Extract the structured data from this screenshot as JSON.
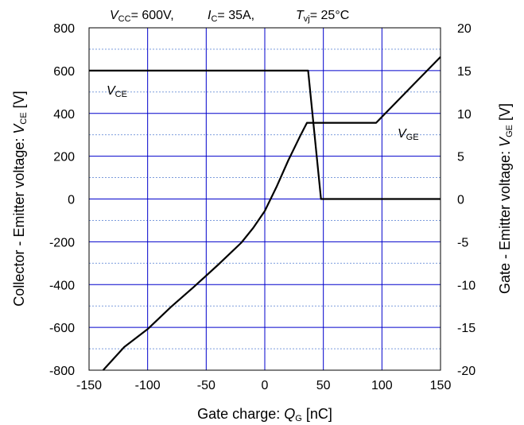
{
  "chart_data": {
    "type": "line",
    "conditions": {
      "vcc": {
        "symbol": "V",
        "sub": "CC",
        "value": "= 600V,"
      },
      "ic": {
        "symbol": "I",
        "sub": "C",
        "value": "= 35A,"
      },
      "tvj": {
        "symbol": "T",
        "sub": "vj",
        "value": "= 25°C"
      }
    },
    "xlabel": {
      "text": "Gate charge: ",
      "symbol": "Q",
      "sub": "G",
      "unit": " [nC]"
    },
    "ylabel_left": {
      "text": "Collector - Emitter voltage: ",
      "symbol": "V",
      "sub": "CE",
      "unit": " [V]"
    },
    "ylabel_right": {
      "text": "Gate - Emitter voltage: ",
      "symbol": "V",
      "sub": "GE",
      "unit": " [V]"
    },
    "xlim": [
      -150,
      150
    ],
    "ylim_left": [
      -800,
      800
    ],
    "ylim_right": [
      -20,
      20
    ],
    "x_ticks": [
      "-150",
      "-100",
      "-50",
      "0",
      "50",
      "100",
      "150"
    ],
    "y_left_ticks": [
      "800",
      "600",
      "400",
      "200",
      "0",
      "-200",
      "-400",
      "-600",
      "-800"
    ],
    "y_right_ticks": [
      "20",
      "15",
      "10",
      "5",
      "0",
      "-5",
      "-10",
      "-15",
      "-20"
    ],
    "grid": true,
    "series": [
      {
        "name": "V_CE",
        "label": {
          "symbol": "V",
          "sub": "CE"
        },
        "axis": "left",
        "color": "#000000",
        "x": [
          -150,
          37,
          48,
          150
        ],
        "y": [
          600,
          600,
          0,
          0
        ]
      },
      {
        "name": "V_GE",
        "label": {
          "symbol": "V",
          "sub": "GE"
        },
        "axis": "right",
        "color": "#000000",
        "x": [
          -138,
          -120,
          -100,
          -80,
          -60,
          -40,
          -20,
          -10,
          0,
          10,
          20,
          30,
          36,
          95,
          150
        ],
        "y": [
          -20,
          -17.3,
          -15.2,
          -12.6,
          -10.2,
          -7.7,
          -5.1,
          -3.4,
          -1.4,
          1.4,
          4.5,
          7.3,
          8.9,
          8.9,
          16.6
        ]
      }
    ],
    "colors": {
      "major_grid": "#0000cc",
      "minor_grid": "#6a8fd8",
      "line": "#000000"
    }
  }
}
